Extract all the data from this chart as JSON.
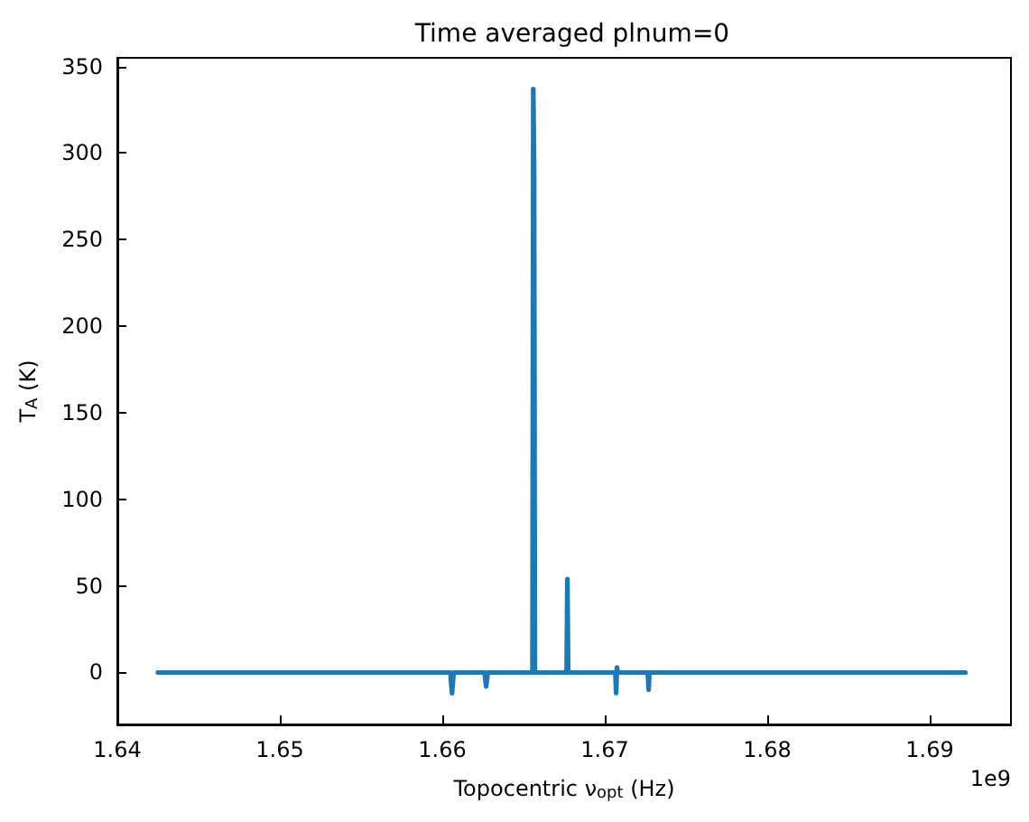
{
  "chart_data": {
    "type": "line",
    "title": "Time averaged plnum=0",
    "xlabel": "Topocentric ν$_{opt}$ (Hz)",
    "ylabel": "T$_{A}$ (K)",
    "annotations": [
      "1e9"
    ],
    "x": [
      1.6425,
      1.6605,
      1.6606,
      1.6607,
      1.6626,
      1.6627,
      1.6628,
      1.66555,
      1.6656,
      1.66565,
      1.6657,
      1.66765,
      1.6677,
      1.66775,
      1.67065,
      1.6707,
      1.67075,
      1.6708,
      1.67265,
      1.6727,
      1.67275,
      1.6922
    ],
    "series": [
      {
        "color": "#1f77b4",
        "values": [
          0,
          0,
          -12,
          0,
          0,
          -8,
          0,
          0,
          337,
          295,
          0,
          0,
          54,
          0,
          0,
          -12,
          3,
          0,
          0,
          -10,
          0,
          0
        ]
      }
    ],
    "xlim": [
      1.64,
      1.695
    ],
    "xticks": [
      1.64,
      1.65,
      1.66,
      1.67,
      1.68,
      1.69
    ],
    "ylim": [
      -30,
      355
    ],
    "yticks": [
      0,
      50,
      100,
      150,
      200,
      250,
      300,
      350
    ],
    "grid": false,
    "marker": "none",
    "line_style": "solid"
  }
}
